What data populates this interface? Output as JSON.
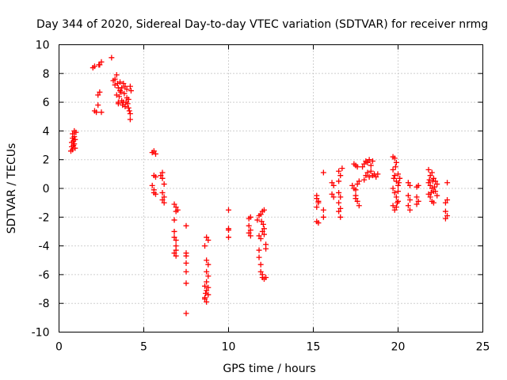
{
  "chart_data": {
    "type": "scatter",
    "title": "Day 344 of 2020, Sidereal Day-to-day VTEC variation (SDTVAR) for receiver nrmg",
    "xlabel": "GPS time / hours",
    "ylabel": "SDTVAR / TECUs",
    "xlim": [
      0,
      25
    ],
    "ylim": [
      -10,
      10
    ],
    "xticks": [
      0,
      5,
      10,
      15,
      20,
      25
    ],
    "yticks": [
      -10,
      -8,
      -6,
      -4,
      -2,
      0,
      2,
      4,
      6,
      8,
      10
    ],
    "grid": true,
    "marker": "+",
    "series": [
      {
        "name": "SDTVAR",
        "color": "#ff0000",
        "points": [
          [
            0.7,
            2.6
          ],
          [
            0.75,
            2.9
          ],
          [
            0.75,
            3.2
          ],
          [
            0.8,
            3.5
          ],
          [
            0.8,
            3.8
          ],
          [
            0.85,
            3.0
          ],
          [
            0.85,
            3.3
          ],
          [
            0.9,
            3.6
          ],
          [
            0.9,
            4.0
          ],
          [
            0.95,
            2.8
          ],
          [
            0.95,
            3.4
          ],
          [
            1.0,
            3.9
          ],
          [
            0.8,
            2.7
          ],
          [
            0.9,
            3.1
          ],
          [
            2.0,
            8.4
          ],
          [
            2.1,
            8.5
          ],
          [
            2.1,
            5.4
          ],
          [
            2.2,
            5.3
          ],
          [
            2.3,
            5.8
          ],
          [
            2.3,
            6.5
          ],
          [
            2.4,
            6.7
          ],
          [
            2.4,
            8.6
          ],
          [
            2.5,
            8.8
          ],
          [
            2.5,
            5.3
          ],
          [
            2.35,
            8.6
          ],
          [
            3.1,
            9.1
          ],
          [
            3.2,
            7.5
          ],
          [
            3.3,
            7.2
          ],
          [
            3.4,
            7.9
          ],
          [
            3.4,
            6.5
          ],
          [
            3.5,
            7.0
          ],
          [
            3.5,
            6.0
          ],
          [
            3.5,
            5.9
          ],
          [
            3.6,
            7.4
          ],
          [
            3.6,
            6.8
          ],
          [
            3.7,
            7.0
          ],
          [
            3.7,
            6.1
          ],
          [
            3.8,
            7.3
          ],
          [
            3.8,
            6.0
          ],
          [
            3.9,
            5.7
          ],
          [
            3.9,
            7.1
          ],
          [
            4.0,
            6.9
          ],
          [
            4.0,
            6.3
          ],
          [
            4.1,
            6.2
          ],
          [
            4.1,
            5.6
          ],
          [
            4.2,
            5.2
          ],
          [
            4.2,
            4.8
          ],
          [
            4.2,
            7.1
          ],
          [
            4.25,
            6.8
          ],
          [
            3.3,
            7.6
          ],
          [
            3.45,
            7.3
          ],
          [
            3.55,
            6.4
          ],
          [
            3.65,
            6.7
          ],
          [
            3.75,
            5.8
          ],
          [
            3.85,
            6.6
          ],
          [
            3.95,
            6.0
          ],
          [
            4.05,
            5.9
          ],
          [
            4.15,
            5.4
          ],
          [
            5.5,
            2.5
          ],
          [
            5.6,
            2.6
          ],
          [
            5.7,
            2.4
          ],
          [
            5.6,
            0.9
          ],
          [
            5.7,
            0.8
          ],
          [
            5.5,
            0.2
          ],
          [
            5.6,
            -0.1
          ],
          [
            5.7,
            -0.4
          ],
          [
            5.6,
            -0.3
          ],
          [
            6.1,
            1.1
          ],
          [
            6.1,
            0.7
          ],
          [
            6.2,
            0.3
          ],
          [
            6.1,
            -0.3
          ],
          [
            6.2,
            -0.6
          ],
          [
            6.1,
            -0.8
          ],
          [
            6.2,
            -1.0
          ],
          [
            6.0,
            0.9
          ],
          [
            6.8,
            -1.1
          ],
          [
            6.9,
            -1.3
          ],
          [
            6.9,
            -1.6
          ],
          [
            6.8,
            -2.2
          ],
          [
            6.8,
            -3.0
          ],
          [
            6.8,
            -3.4
          ],
          [
            6.9,
            -3.6
          ],
          [
            6.9,
            -4.0
          ],
          [
            6.9,
            -4.3
          ],
          [
            6.8,
            -4.5
          ],
          [
            6.9,
            -4.7
          ],
          [
            7.0,
            -1.5
          ],
          [
            7.5,
            -2.6
          ],
          [
            7.5,
            -4.5
          ],
          [
            7.5,
            -4.7
          ],
          [
            7.5,
            -5.2
          ],
          [
            7.5,
            -5.8
          ],
          [
            7.5,
            -6.6
          ],
          [
            7.5,
            -8.7
          ],
          [
            8.7,
            -3.4
          ],
          [
            8.8,
            -3.6
          ],
          [
            8.6,
            -4.0
          ],
          [
            8.7,
            -5.0
          ],
          [
            8.8,
            -5.3
          ],
          [
            8.7,
            -5.8
          ],
          [
            8.8,
            -6.1
          ],
          [
            8.7,
            -6.5
          ],
          [
            8.6,
            -6.8
          ],
          [
            8.7,
            -7.1
          ],
          [
            8.8,
            -7.4
          ],
          [
            8.6,
            -7.6
          ],
          [
            8.7,
            -7.9
          ],
          [
            8.6,
            -7.7
          ],
          [
            8.8,
            -6.9
          ],
          [
            8.65,
            -7.3
          ],
          [
            10.0,
            -1.5
          ],
          [
            10.0,
            -2.8
          ],
          [
            10.0,
            -2.9
          ],
          [
            10.0,
            -3.4
          ],
          [
            11.2,
            -2.1
          ],
          [
            11.3,
            -2.0
          ],
          [
            11.2,
            -2.6
          ],
          [
            11.3,
            -2.9
          ],
          [
            11.2,
            -3.1
          ],
          [
            11.3,
            -3.3
          ],
          [
            11.7,
            -2.2
          ],
          [
            11.8,
            -1.9
          ],
          [
            11.9,
            -1.8
          ],
          [
            12.0,
            -1.6
          ],
          [
            12.1,
            -1.5
          ],
          [
            11.8,
            -3.3
          ],
          [
            11.9,
            -3.5
          ],
          [
            12.0,
            -3.0
          ],
          [
            12.1,
            -3.2
          ],
          [
            11.8,
            -4.3
          ],
          [
            11.8,
            -4.8
          ],
          [
            11.9,
            -5.3
          ],
          [
            11.9,
            -5.8
          ],
          [
            12.0,
            -6.0
          ],
          [
            12.0,
            -6.2
          ],
          [
            12.1,
            -6.3
          ],
          [
            12.2,
            -6.2
          ],
          [
            12.1,
            -2.8
          ],
          [
            12.2,
            -3.9
          ],
          [
            12.2,
            -4.2
          ],
          [
            11.95,
            -2.3
          ],
          [
            12.05,
            -2.5
          ],
          [
            15.2,
            -0.5
          ],
          [
            15.2,
            -0.7
          ],
          [
            15.3,
            -1.0
          ],
          [
            15.2,
            -1.3
          ],
          [
            15.3,
            -0.9
          ],
          [
            15.2,
            -2.3
          ],
          [
            15.3,
            -2.4
          ],
          [
            15.6,
            1.1
          ],
          [
            15.6,
            -1.5
          ],
          [
            15.6,
            -2.0
          ],
          [
            16.1,
            0.4
          ],
          [
            16.2,
            0.2
          ],
          [
            16.1,
            -0.4
          ],
          [
            16.2,
            -0.6
          ],
          [
            16.5,
            1.2
          ],
          [
            16.6,
            0.9
          ],
          [
            16.5,
            0.5
          ],
          [
            16.7,
            1.4
          ],
          [
            16.5,
            -0.3
          ],
          [
            16.6,
            -0.6
          ],
          [
            16.5,
            -1.0
          ],
          [
            16.6,
            -1.4
          ],
          [
            16.5,
            -1.6
          ],
          [
            16.6,
            -2.0
          ],
          [
            17.4,
            1.7
          ],
          [
            17.5,
            1.6
          ],
          [
            17.6,
            1.5
          ],
          [
            17.3,
            0.2
          ],
          [
            17.4,
            0.0
          ],
          [
            17.5,
            -0.1
          ],
          [
            17.6,
            0.3
          ],
          [
            17.7,
            0.5
          ],
          [
            17.5,
            -0.5
          ],
          [
            17.6,
            -0.9
          ],
          [
            17.7,
            -1.2
          ],
          [
            17.5,
            -0.7
          ],
          [
            17.9,
            1.5
          ],
          [
            18.0,
            1.7
          ],
          [
            18.1,
            1.9
          ],
          [
            18.2,
            1.8
          ],
          [
            18.3,
            2.0
          ],
          [
            18.4,
            1.6
          ],
          [
            18.5,
            1.9
          ],
          [
            18.0,
            0.6
          ],
          [
            18.1,
            0.9
          ],
          [
            18.2,
            1.1
          ],
          [
            18.3,
            0.8
          ],
          [
            18.4,
            1.2
          ],
          [
            18.5,
            0.9
          ],
          [
            18.6,
            1.0
          ],
          [
            18.7,
            0.8
          ],
          [
            18.8,
            1.0
          ],
          [
            19.7,
            2.2
          ],
          [
            19.8,
            2.1
          ],
          [
            19.9,
            1.8
          ],
          [
            19.7,
            1.3
          ],
          [
            19.8,
            0.9
          ],
          [
            19.9,
            0.5
          ],
          [
            20.0,
            0.2
          ],
          [
            19.7,
            0.0
          ],
          [
            19.8,
            -0.3
          ],
          [
            19.9,
            -0.6
          ],
          [
            20.0,
            -0.9
          ],
          [
            19.7,
            -1.2
          ],
          [
            19.8,
            -1.5
          ],
          [
            19.9,
            -1.3
          ],
          [
            20.0,
            1.0
          ],
          [
            20.1,
            0.7
          ],
          [
            20.0,
            -0.2
          ],
          [
            19.75,
            0.7
          ],
          [
            19.85,
            1.5
          ],
          [
            19.95,
            -1.0
          ],
          [
            20.05,
            0.4
          ],
          [
            20.6,
            0.4
          ],
          [
            20.7,
            0.2
          ],
          [
            20.6,
            -0.5
          ],
          [
            20.7,
            -0.8
          ],
          [
            20.6,
            -1.2
          ],
          [
            20.7,
            -1.5
          ],
          [
            21.1,
            0.1
          ],
          [
            21.2,
            0.2
          ],
          [
            21.1,
            -0.6
          ],
          [
            21.2,
            -0.9
          ],
          [
            21.1,
            -1.1
          ],
          [
            21.8,
            1.3
          ],
          [
            21.9,
            0.9
          ],
          [
            22.0,
            1.1
          ],
          [
            22.1,
            0.7
          ],
          [
            21.8,
            0.4
          ],
          [
            21.9,
            0.2
          ],
          [
            22.0,
            0.0
          ],
          [
            22.1,
            -0.2
          ],
          [
            21.8,
            -0.4
          ],
          [
            21.9,
            -0.6
          ],
          [
            22.0,
            -0.9
          ],
          [
            22.1,
            -1.0
          ],
          [
            22.2,
            0.5
          ],
          [
            22.3,
            0.3
          ],
          [
            22.2,
            -0.2
          ],
          [
            22.3,
            -0.5
          ],
          [
            21.85,
            0.6
          ],
          [
            21.95,
            -0.3
          ],
          [
            22.05,
            0.5
          ],
          [
            22.15,
            0.1
          ],
          [
            22.9,
            0.4
          ],
          [
            22.8,
            -1.0
          ],
          [
            22.9,
            -0.8
          ],
          [
            22.8,
            -1.6
          ],
          [
            22.9,
            -1.9
          ],
          [
            22.8,
            -2.1
          ]
        ]
      }
    ]
  }
}
